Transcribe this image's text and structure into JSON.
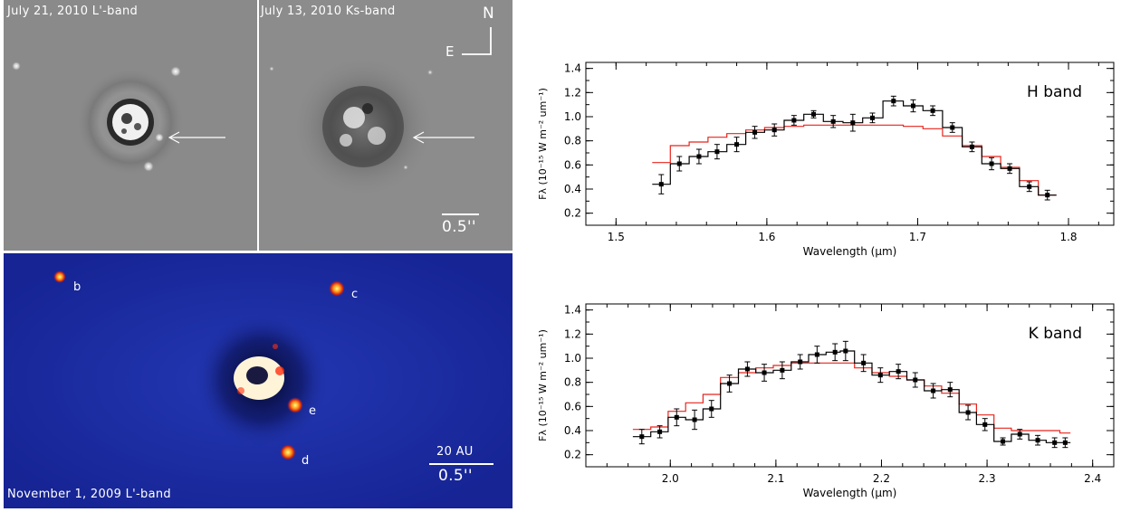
{
  "images": {
    "top_left": {
      "caption": "July 21, 2010 L'-band",
      "colors": {
        "background": "#8a8a8a"
      }
    },
    "top_right": {
      "caption": "July 13, 2010 Ks-band",
      "compass_n": "N",
      "compass_e": "E",
      "scale_label": "0.5''",
      "colors": {
        "background": "#8c8c8c"
      }
    },
    "bottom": {
      "caption": "November 1, 2009 L'-band",
      "planet_labels": [
        "b",
        "c",
        "e",
        "d"
      ],
      "scale_top_label": "20 AU",
      "scale_label": "0.5''",
      "colors": {
        "background": "#1c2fa6",
        "planet": "#f05a10"
      }
    }
  },
  "chart_data": [
    {
      "type": "line",
      "band_label": "H band",
      "xlabel": "Wavelength (μm)",
      "ylabel": "Fλ (10⁻¹⁵ W m⁻² um⁻¹)",
      "xlim": [
        1.48,
        1.83
      ],
      "ylim": [
        0.1,
        1.45
      ],
      "xticks": [
        "1.5",
        "1.6",
        "1.7",
        "1.8"
      ],
      "xtick_values": [
        1.5,
        1.6,
        1.7,
        1.8
      ],
      "yticks": [
        "0.2",
        "0.4",
        "0.6",
        "0.8",
        "1.0",
        "1.2",
        "1.4"
      ],
      "ytick_values": [
        0.2,
        0.4,
        0.6,
        0.8,
        1.0,
        1.2,
        1.4
      ],
      "colors": {
        "data": "#000000",
        "model": "#e8241c"
      },
      "data": {
        "x": [
          1.53,
          1.542,
          1.555,
          1.567,
          1.58,
          1.592,
          1.605,
          1.618,
          1.631,
          1.644,
          1.657,
          1.67,
          1.684,
          1.697,
          1.71,
          1.723,
          1.736,
          1.749,
          1.761,
          1.774,
          1.786
        ],
        "y": [
          0.44,
          0.61,
          0.67,
          0.71,
          0.77,
          0.87,
          0.89,
          0.97,
          1.02,
          0.96,
          0.95,
          0.99,
          1.13,
          1.09,
          1.05,
          0.91,
          0.75,
          0.61,
          0.57,
          0.42,
          0.35
        ],
        "err": [
          0.08,
          0.06,
          0.06,
          0.06,
          0.06,
          0.05,
          0.05,
          0.04,
          0.03,
          0.05,
          0.07,
          0.04,
          0.04,
          0.05,
          0.04,
          0.04,
          0.04,
          0.05,
          0.04,
          0.04,
          0.04
        ]
      },
      "model": {
        "x": [
          1.53,
          1.542,
          1.555,
          1.567,
          1.58,
          1.592,
          1.605,
          1.618,
          1.631,
          1.644,
          1.657,
          1.67,
          1.684,
          1.697,
          1.71,
          1.723,
          1.736,
          1.749,
          1.761,
          1.774,
          1.786
        ],
        "y": [
          0.62,
          0.76,
          0.79,
          0.83,
          0.86,
          0.89,
          0.91,
          0.92,
          0.93,
          0.93,
          0.93,
          0.93,
          0.93,
          0.92,
          0.9,
          0.84,
          0.76,
          0.67,
          0.58,
          0.47,
          0.35
        ]
      }
    },
    {
      "type": "line",
      "band_label": "K band",
      "xlabel": "Wavelength (μm)",
      "ylabel": "Fλ (10⁻¹⁵ W m⁻² um⁻¹)",
      "xlim": [
        1.92,
        2.42
      ],
      "ylim": [
        0.1,
        1.45
      ],
      "xticks": [
        "2.0",
        "2.1",
        "2.2",
        "2.3",
        "2.4"
      ],
      "xtick_values": [
        2.0,
        2.1,
        2.2,
        2.3,
        2.4
      ],
      "yticks": [
        "0.2",
        "0.4",
        "0.6",
        "0.8",
        "1.0",
        "1.2",
        "1.4"
      ],
      "ytick_values": [
        0.2,
        0.4,
        0.6,
        0.8,
        1.0,
        1.2,
        1.4
      ],
      "colors": {
        "data": "#000000",
        "model": "#e8241c"
      },
      "data": {
        "x": [
          1.973,
          1.99,
          2.006,
          2.023,
          2.039,
          2.056,
          2.073,
          2.089,
          2.106,
          2.123,
          2.139,
          2.156,
          2.166,
          2.183,
          2.199,
          2.216,
          2.232,
          2.249,
          2.265,
          2.282,
          2.298,
          2.315,
          2.331,
          2.348,
          2.364,
          2.374
        ],
        "y": [
          0.35,
          0.39,
          0.51,
          0.49,
          0.58,
          0.79,
          0.91,
          0.88,
          0.9,
          0.97,
          1.03,
          1.05,
          1.06,
          0.96,
          0.86,
          0.89,
          0.82,
          0.73,
          0.74,
          0.55,
          0.45,
          0.31,
          0.37,
          0.32,
          0.3,
          0.3
        ],
        "err": [
          0.06,
          0.05,
          0.07,
          0.08,
          0.07,
          0.07,
          0.06,
          0.07,
          0.07,
          0.06,
          0.07,
          0.07,
          0.08,
          0.07,
          0.06,
          0.06,
          0.06,
          0.06,
          0.06,
          0.06,
          0.05,
          0.03,
          0.04,
          0.04,
          0.04,
          0.04
        ]
      },
      "model": {
        "x": [
          1.973,
          1.99,
          2.006,
          2.023,
          2.039,
          2.056,
          2.073,
          2.089,
          2.106,
          2.123,
          2.139,
          2.156,
          2.166,
          2.183,
          2.199,
          2.216,
          2.232,
          2.249,
          2.265,
          2.282,
          2.298,
          2.315,
          2.331,
          2.348,
          2.364,
          2.374
        ],
        "y": [
          0.41,
          0.43,
          0.56,
          0.63,
          0.7,
          0.84,
          0.88,
          0.92,
          0.94,
          0.96,
          0.96,
          0.96,
          0.96,
          0.92,
          0.88,
          0.85,
          0.82,
          0.77,
          0.71,
          0.62,
          0.53,
          0.42,
          0.4,
          0.4,
          0.4,
          0.38
        ]
      }
    }
  ]
}
